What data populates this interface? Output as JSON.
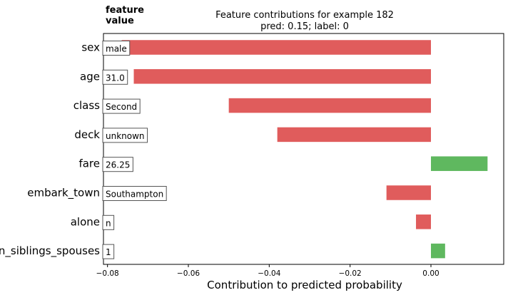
{
  "chart_data": {
    "type": "bar",
    "orientation": "horizontal",
    "title": "Feature contributions for example 182",
    "subtitle": "pred: 0.15; label: 0",
    "header_label": [
      "feature",
      "value"
    ],
    "xlabel": "Contribution to predicted probability",
    "ylabel": "",
    "xlim": [
      -0.081,
      0.018
    ],
    "xticks": [
      -0.08,
      -0.06,
      -0.04,
      -0.02,
      0.0
    ],
    "xtick_labels": [
      "−0.08",
      "−0.06",
      "−0.04",
      "−0.02",
      "0.00"
    ],
    "positive_color": "#5fb85f",
    "negative_color": "#e05c5c",
    "categories": [
      "sex",
      "age",
      "class",
      "deck",
      "fare",
      "embark_town",
      "alone",
      "n_siblings_spouses"
    ],
    "feature_values": [
      "male",
      "31.0",
      "Second",
      "unknown",
      "26.25",
      "Southampton",
      "n",
      "1"
    ],
    "values": [
      -0.0765,
      -0.0735,
      -0.05,
      -0.038,
      0.014,
      -0.011,
      -0.0037,
      0.0035
    ]
  }
}
